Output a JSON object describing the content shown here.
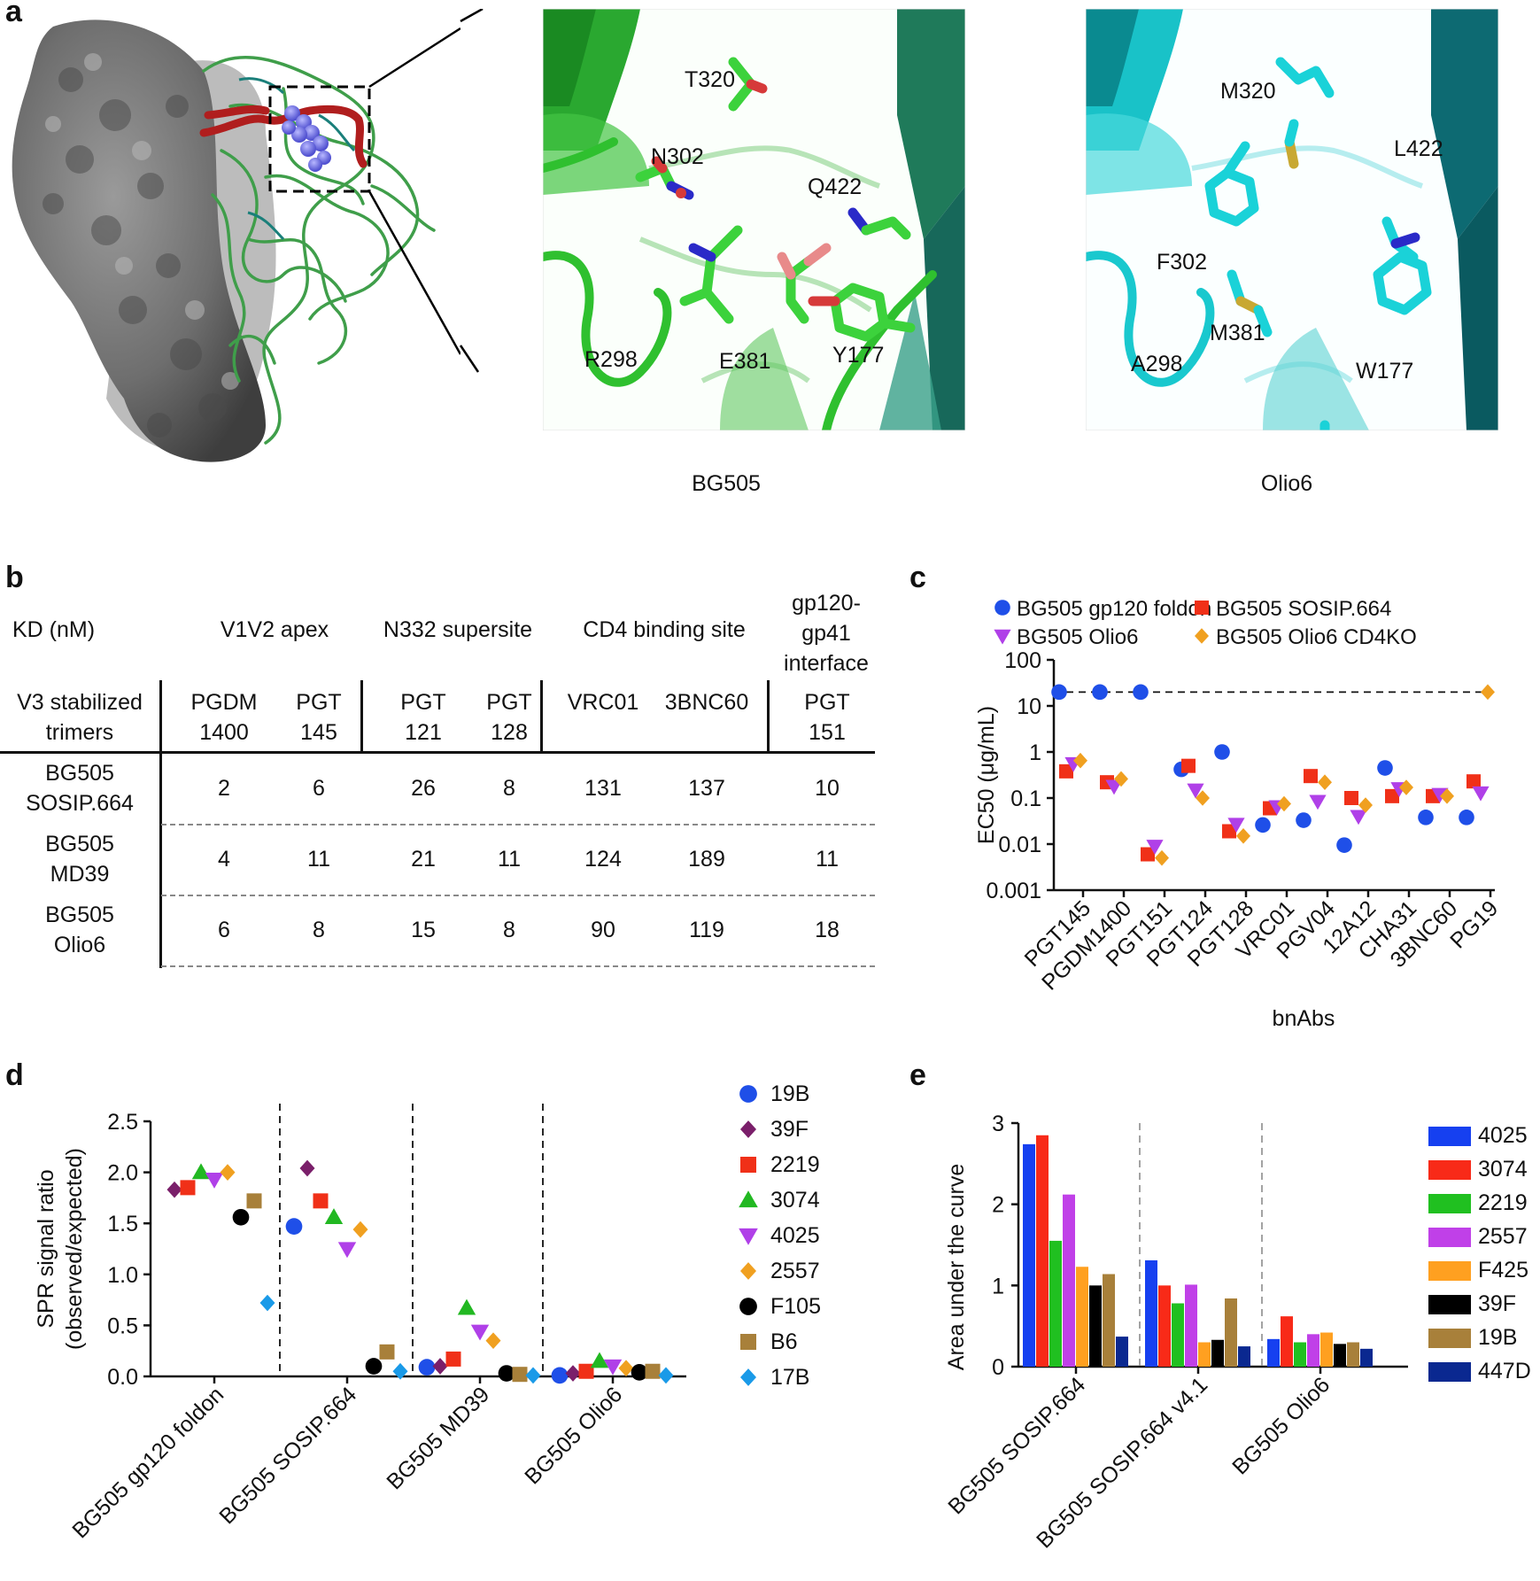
{
  "panel_labels": {
    "a": "a",
    "b": "b",
    "c": "c",
    "d": "d",
    "e": "e"
  },
  "panel_a": {
    "residues_bg505": [
      "T320",
      "N302",
      "Q422",
      "R298",
      "E381",
      "Y177"
    ],
    "residues_olio6": [
      "M320",
      "L422",
      "F302",
      "M381",
      "A298",
      "W177"
    ],
    "caption_left": "BG505",
    "caption_right": "Olio6",
    "colors": {
      "surface": "#6e6e6e",
      "ribbon": "#3f9e4a",
      "loop": "#b01e1e",
      "spheres": "#7070e0",
      "bg505_sticks": "#3cd23c",
      "olio6_sticks": "#1ad2d8",
      "teal": "#1a7f7a"
    }
  },
  "panel_b": {
    "corner_top": "KD (nM)",
    "corner_bottom": [
      "V3 stabilized",
      "trimers"
    ],
    "groups": [
      {
        "label": "V1V2 apex"
      },
      {
        "label": "N332 supersite"
      },
      {
        "label": "CD4 binding site"
      },
      {
        "label": "gp120-\ngp41\ninterface"
      }
    ],
    "antibodies": [
      [
        "PGDM",
        "1400"
      ],
      [
        "PGT",
        "145"
      ],
      [
        "PGT",
        "121"
      ],
      [
        "PGT",
        "128"
      ],
      [
        "VRC01",
        ""
      ],
      [
        "3BNC60",
        ""
      ],
      [
        "PGT",
        "151"
      ]
    ],
    "rows": [
      {
        "name": [
          "BG505",
          "SOSIP.664"
        ],
        "values": [
          "2",
          "6",
          "26",
          "8",
          "131",
          "137",
          "10"
        ]
      },
      {
        "name": [
          "BG505",
          "MD39"
        ],
        "values": [
          "4",
          "11",
          "21",
          "11",
          "124",
          "189",
          "11"
        ]
      },
      {
        "name": [
          "BG505",
          "Olio6"
        ],
        "values": [
          "6",
          "8",
          "15",
          "8",
          "90",
          "119",
          "18"
        ]
      }
    ]
  },
  "chart_data": [
    {
      "panel": "c",
      "type": "scatter",
      "ylabel": "EC50 (μg/mL)",
      "xlabel": "bnAbs",
      "y_scale": "log",
      "ylim": [
        0.001,
        100
      ],
      "yticks": [
        "0.001",
        "0.01",
        "0.1",
        "1",
        "10",
        "100"
      ],
      "dashed_line_y": 20,
      "categories": [
        "PGT145",
        "PGDM1400",
        "PGT151",
        "PGT124",
        "PGT128",
        "VRC01",
        "PGV04",
        "12A12",
        "CHA31",
        "3BNC60",
        "PG19"
      ],
      "legend_placement": "top",
      "series": [
        {
          "name": "BG505 gp120 foldon",
          "marker": "circle",
          "color": "#1f4fe8",
          "values": [
            20,
            20,
            20,
            0.42,
            1.0,
            0.026,
            0.033,
            0.0095,
            0.45,
            0.038,
            0.038
          ]
        },
        {
          "name": "BG505 SOSIP.664",
          "marker": "square",
          "color": "#f03018",
          "values": [
            0.38,
            0.22,
            0.006,
            0.5,
            0.019,
            0.06,
            0.3,
            0.1,
            0.11,
            0.11,
            0.23
          ]
        },
        {
          "name": "BG505 Olio6",
          "marker": "triangle-down",
          "color": "#b040e8",
          "values": [
            0.56,
            0.18,
            0.009,
            0.15,
            0.027,
            0.065,
            0.085,
            0.04,
            0.16,
            0.12,
            0.13
          ]
        },
        {
          "name": "BG505 Olio6 CD4KO",
          "marker": "diamond",
          "color": "#f0a020",
          "values": [
            0.65,
            0.26,
            0.005,
            0.1,
            0.015,
            0.075,
            0.22,
            0.07,
            0.17,
            0.11,
            20
          ]
        }
      ]
    },
    {
      "panel": "d",
      "type": "scatter",
      "ylabel": "SPR signal ratio\n(observed/expected)",
      "ylim": [
        0.0,
        2.5
      ],
      "yticks": [
        "0.0",
        "0.5",
        "1.0",
        "1.5",
        "2.0",
        "2.5"
      ],
      "categories": [
        "BG505 gp120 foldon",
        "BG505 SOSIP.664",
        "BG505 MD39",
        "BG505 Olio6"
      ],
      "legend_placement": "right",
      "series": [
        {
          "name": "19B",
          "marker": "circle",
          "color": "#1f4fe8",
          "values": [
            null,
            1.47,
            0.09,
            0.01
          ]
        },
        {
          "name": "39F",
          "marker": "diamond",
          "color": "#7a1f6a",
          "values": [
            1.83,
            2.04,
            0.1,
            0.03
          ]
        },
        {
          "name": "2219",
          "marker": "square",
          "color": "#f03018",
          "values": [
            1.85,
            1.72,
            0.17,
            0.05
          ]
        },
        {
          "name": "3074",
          "marker": "triangle-up",
          "color": "#22b822",
          "values": [
            2.0,
            1.56,
            0.67,
            0.15
          ]
        },
        {
          "name": "4025",
          "marker": "triangle-down",
          "color": "#b040e8",
          "values": [
            1.93,
            1.25,
            0.44,
            0.1
          ]
        },
        {
          "name": "2557",
          "marker": "diamond",
          "color": "#f0a020",
          "values": [
            2.0,
            1.44,
            0.35,
            0.08
          ]
        },
        {
          "name": "F105",
          "marker": "circle",
          "color": "#000000",
          "values": [
            1.56,
            0.1,
            0.03,
            0.04
          ]
        },
        {
          "name": "B6",
          "marker": "square",
          "color": "#a8803a",
          "values": [
            1.72,
            0.24,
            0.02,
            0.05
          ]
        },
        {
          "name": "17B",
          "marker": "diamond",
          "color": "#1a9ae8",
          "values": [
            0.72,
            0.05,
            0.01,
            0.01
          ]
        }
      ]
    },
    {
      "panel": "e",
      "type": "bar",
      "ylabel": "Area under the curve",
      "ylim": [
        0,
        3
      ],
      "yticks": [
        "0",
        "1",
        "2",
        "3"
      ],
      "categories": [
        "BG505 SOSIP.664",
        "BG505 SOSIP.664 v4.1",
        "BG505 Olio6"
      ],
      "legend_placement": "right",
      "series": [
        {
          "name": "4025",
          "color": "#1640f0",
          "values": [
            2.74,
            1.31,
            0.34
          ]
        },
        {
          "name": "3074",
          "color": "#f82a18",
          "values": [
            2.85,
            1.0,
            0.62
          ]
        },
        {
          "name": "2219",
          "color": "#20c020",
          "values": [
            1.55,
            0.78,
            0.3
          ]
        },
        {
          "name": "2557",
          "color": "#c040e8",
          "values": [
            2.12,
            1.01,
            0.4
          ]
        },
        {
          "name": "F425",
          "color": "#ffa020",
          "values": [
            1.23,
            0.3,
            0.42
          ]
        },
        {
          "name": "39F",
          "color": "#000000",
          "values": [
            1.0,
            0.33,
            0.28
          ]
        },
        {
          "name": "19B",
          "color": "#a8803a",
          "values": [
            1.14,
            0.84,
            0.3
          ]
        },
        {
          "name": "447D",
          "color": "#0a2890",
          "values": [
            0.37,
            0.25,
            0.22
          ]
        }
      ]
    }
  ]
}
